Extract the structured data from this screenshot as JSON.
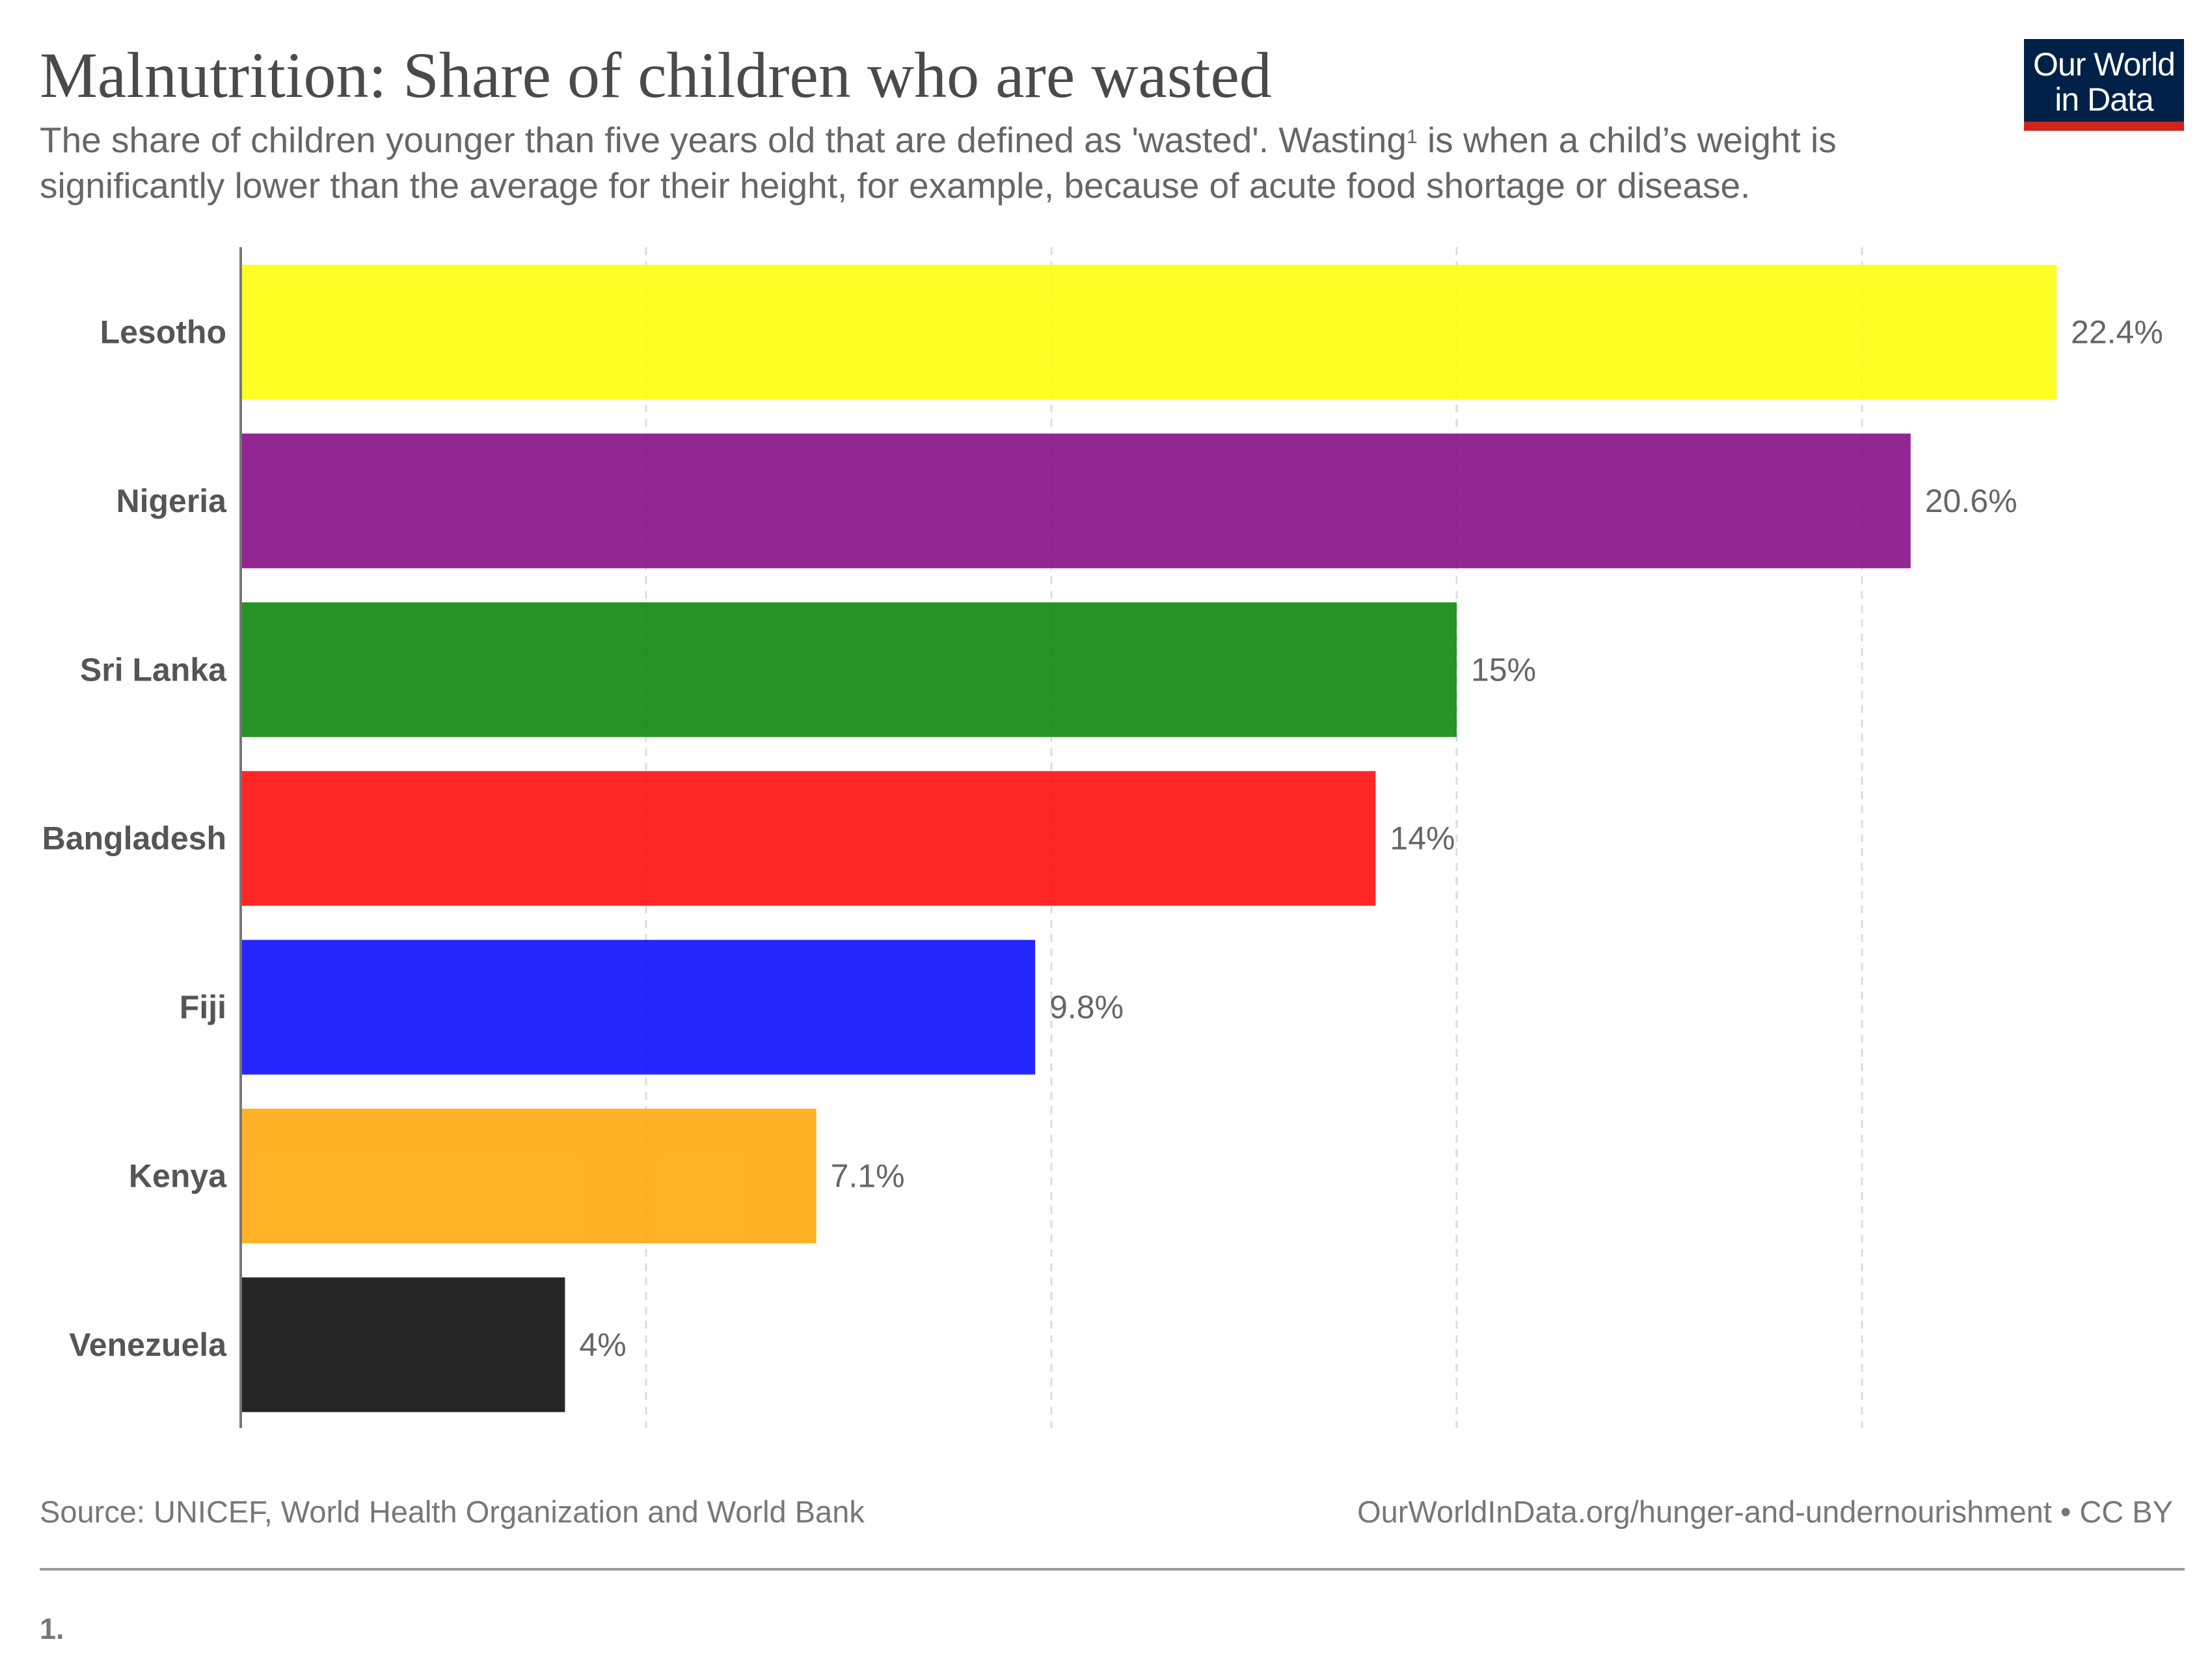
{
  "header": {
    "title": "Malnutrition: Share of children who are wasted",
    "subtitle_part1": "The share of children younger than five years old that are defined as 'wasted'. Wasting",
    "subtitle_sup": "1",
    "subtitle_part2": " is when a child’s weight is significantly lower than the average for their height, for example, because of acute food shortage or disease."
  },
  "logo": {
    "line1": "Our World",
    "line2": "in Data"
  },
  "footer": {
    "source": "Source: UNICEF, World Health Organization and World Bank",
    "url": "OurWorldInData.org/hunger-and-undernourishment • CC BY",
    "footnote": "1."
  },
  "chart_data": {
    "type": "bar",
    "orientation": "horizontal",
    "categories": [
      "Lesotho",
      "Nigeria",
      "Sri Lanka",
      "Bangladesh",
      "Fiji",
      "Kenya",
      "Venezuela"
    ],
    "values": [
      22.4,
      20.6,
      15,
      14,
      9.8,
      7.1,
      4
    ],
    "value_labels": [
      "22.4%",
      "20.6%",
      "15%",
      "14%",
      "9.8%",
      "7.1%",
      "4%"
    ],
    "colors": [
      "#ffff00",
      "#7f007f",
      "#008000",
      "#ff0000",
      "#0000ff",
      "#ffa500",
      "#000000"
    ],
    "bar_opacity": 0.85,
    "xlim": [
      0,
      24
    ],
    "gridlines": [
      5,
      10,
      15,
      20
    ],
    "grid": true,
    "legend": false
  }
}
